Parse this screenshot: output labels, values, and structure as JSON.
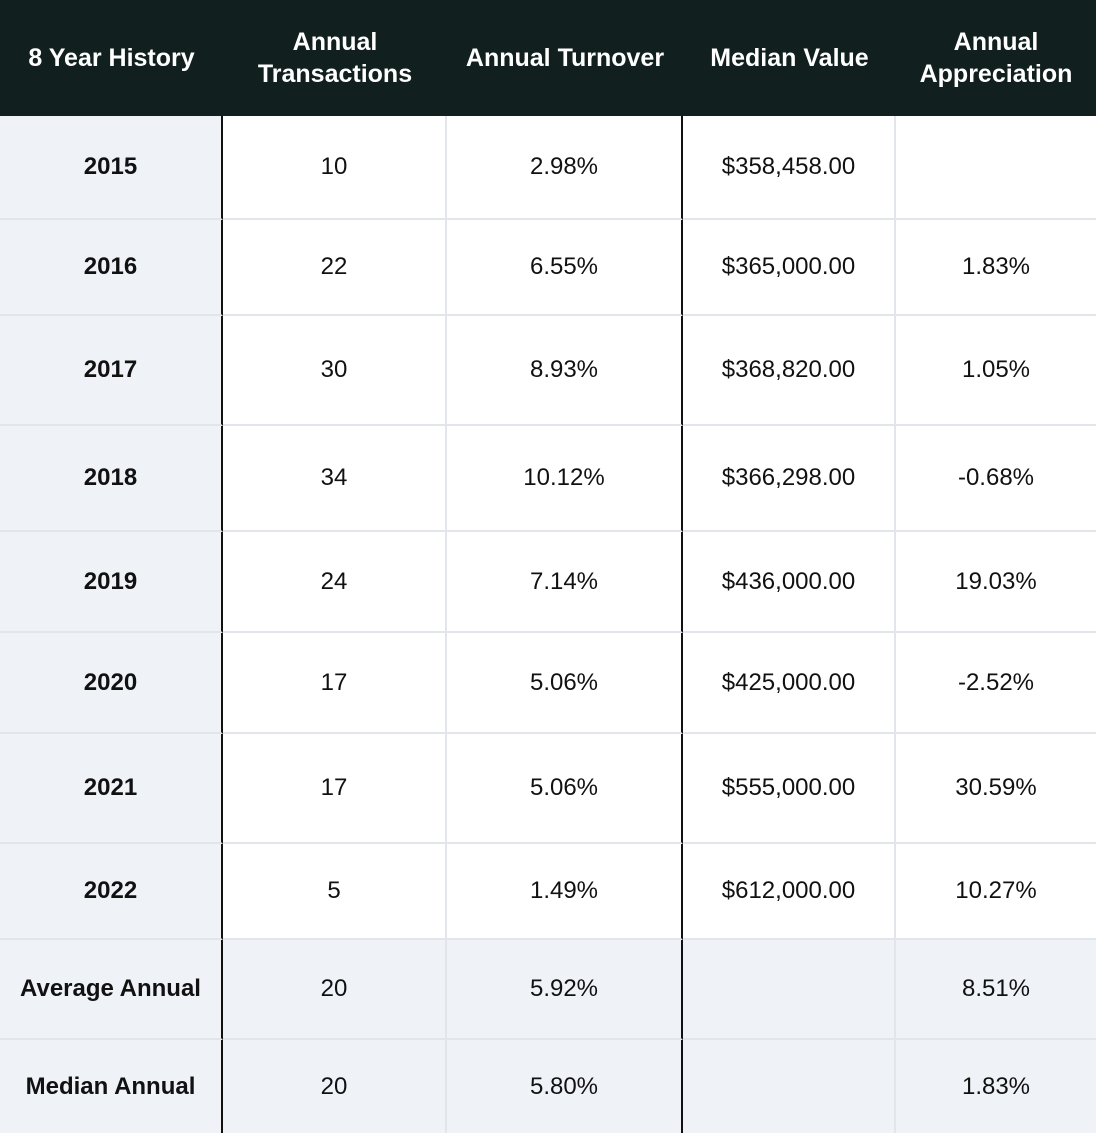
{
  "chart_data": {
    "type": "table",
    "columns": [
      "8 Year History",
      "Annual Transactions",
      "Annual Turnover",
      "Median Value",
      "Annual Appreciation"
    ],
    "rows": [
      [
        "2015",
        "10",
        "2.98%",
        "$358,458.00",
        ""
      ],
      [
        "2016",
        "22",
        "6.55%",
        "$365,000.00",
        "1.83%"
      ],
      [
        "2017",
        "30",
        "8.93%",
        "$368,820.00",
        "1.05%"
      ],
      [
        "2018",
        "34",
        "10.12%",
        "$366,298.00",
        "-0.68%"
      ],
      [
        "2019",
        "24",
        "7.14%",
        "$436,000.00",
        "19.03%"
      ],
      [
        "2020",
        "17",
        "5.06%",
        "$425,000.00",
        "-2.52%"
      ],
      [
        "2021",
        "17",
        "5.06%",
        "$555,000.00",
        "30.59%"
      ],
      [
        "2022",
        "5",
        "1.49%",
        "$612,000.00",
        "10.27%"
      ]
    ],
    "summary_rows": [
      [
        "Average Annual",
        "20",
        "5.92%",
        "",
        "8.51%"
      ],
      [
        "Median Annual",
        "20",
        "5.80%",
        "",
        "1.83%"
      ]
    ],
    "colors": {
      "header_background": "#111f1e",
      "header_text": "#ffffff",
      "label_background": "#eff3f7",
      "grid_line": "#e2e5e9",
      "divider_line": "#111111"
    }
  }
}
